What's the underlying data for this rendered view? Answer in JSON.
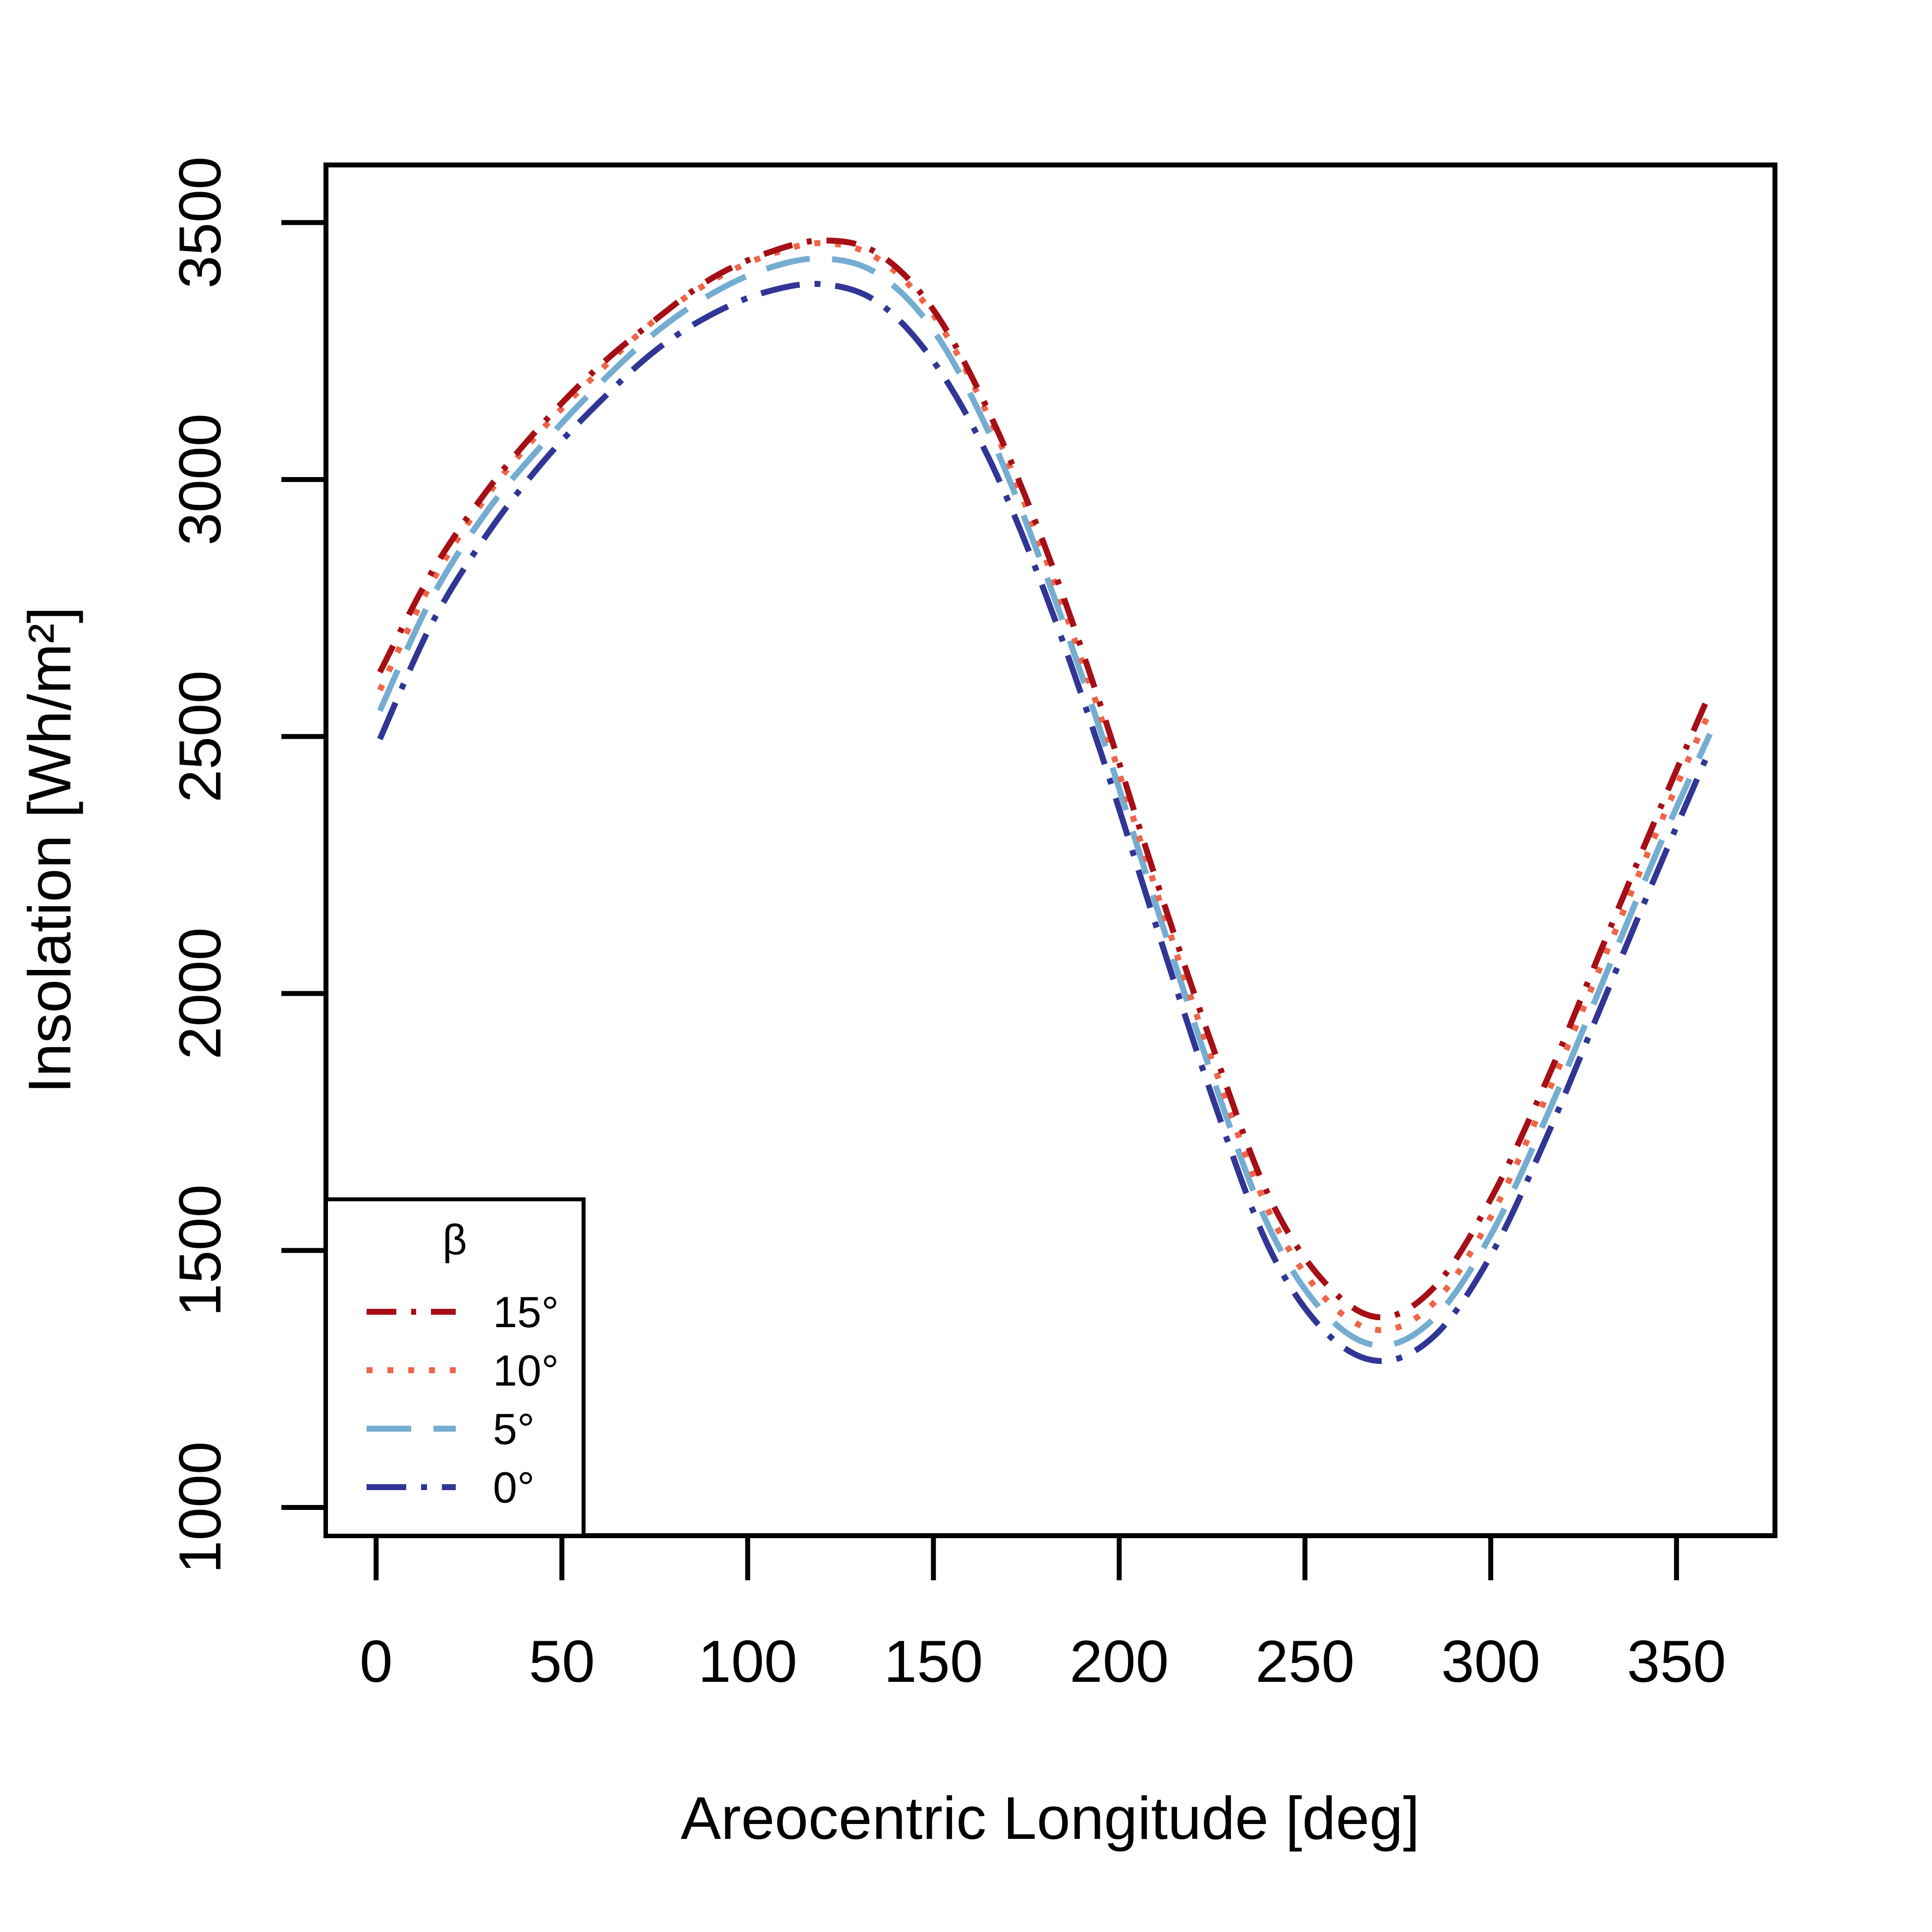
{
  "chart_data": {
    "type": "line",
    "title": "",
    "xlabel": "Areocentric Longitude [deg]",
    "ylabel": "Insolation [Wh/m²]",
    "xlim": [
      -13.5,
      376.5
    ],
    "ylim": [
      945,
      3612
    ],
    "xticks": [
      0,
      50,
      100,
      150,
      200,
      250,
      300,
      350
    ],
    "yticks": [
      1000,
      1500,
      2000,
      2500,
      3000,
      3500
    ],
    "grid": false,
    "legend": {
      "title": "β",
      "position": "bottom-left"
    },
    "x": [
      1,
      15,
      30,
      45,
      60,
      75,
      90,
      105,
      120,
      135,
      150,
      165,
      180,
      195,
      210,
      225,
      240,
      255,
      270,
      285,
      300,
      315,
      330,
      345,
      359
    ],
    "series": [
      {
        "name": "15°",
        "color": "#a50f15",
        "dash": "dash-dot",
        "values": [
          2625,
          2820,
          2980,
          3110,
          3220,
          3310,
          3390,
          3440,
          3465,
          3440,
          3330,
          3130,
          2870,
          2560,
          2220,
          1900,
          1610,
          1440,
          1370,
          1430,
          1600,
          1830,
          2090,
          2350,
          2585
        ]
      },
      {
        "name": "10°",
        "color": "#ef6548",
        "dash": "dotted",
        "values": [
          2590,
          2800,
          2970,
          3100,
          3210,
          3310,
          3385,
          3435,
          3460,
          3430,
          3320,
          3120,
          2850,
          2540,
          2200,
          1870,
          1580,
          1410,
          1345,
          1400,
          1565,
          1800,
          2060,
          2320,
          2550
        ]
      },
      {
        "name": "5°",
        "color": "#74add1",
        "dash": "long-dash",
        "values": [
          2550,
          2770,
          2940,
          3070,
          3185,
          3285,
          3360,
          3410,
          3430,
          3400,
          3290,
          3090,
          2820,
          2510,
          2170,
          1840,
          1550,
          1380,
          1315,
          1370,
          1530,
          1760,
          2020,
          2280,
          2505
        ]
      },
      {
        "name": "0°",
        "color": "#313695",
        "dash": "long-dash-dot",
        "values": [
          2495,
          2720,
          2895,
          3035,
          3150,
          3250,
          3320,
          3365,
          3380,
          3345,
          3230,
          3040,
          2780,
          2470,
          2130,
          1800,
          1510,
          1345,
          1285,
          1335,
          1490,
          1720,
          1980,
          2240,
          2475
        ]
      }
    ]
  }
}
